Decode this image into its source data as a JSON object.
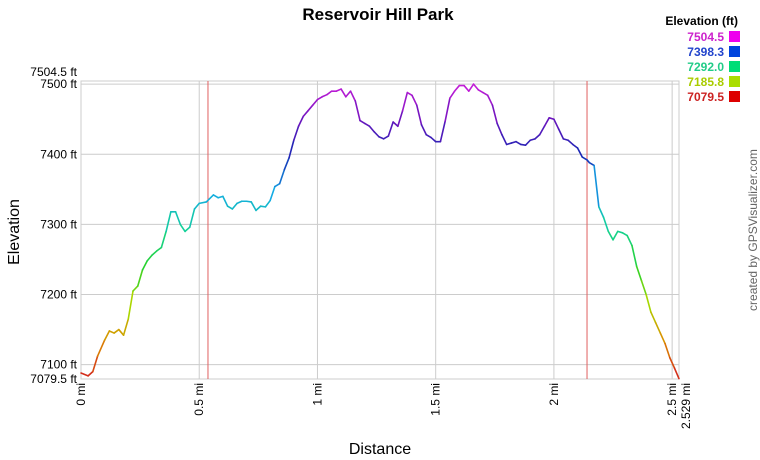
{
  "chart_data": {
    "type": "line",
    "title": "Reservoir Hill Park",
    "xlabel": "Distance",
    "ylabel": "Elevation",
    "xlim": [
      0,
      2.529
    ],
    "ylim": [
      7079.5,
      7504.5
    ],
    "x_ticks": [
      {
        "value": 0,
        "label": "0 mi"
      },
      {
        "value": 0.5,
        "label": "0.5 mi"
      },
      {
        "value": 1,
        "label": "1 mi"
      },
      {
        "value": 1.5,
        "label": "1.5 mi"
      },
      {
        "value": 2,
        "label": "2 mi"
      },
      {
        "value": 2.5,
        "label": "2.5 mi"
      },
      {
        "value": 2.529,
        "label": "2.529 mi"
      }
    ],
    "y_ticks": [
      {
        "value": 7100,
        "label": "7100 ft"
      },
      {
        "value": 7200,
        "label": "7200 ft"
      },
      {
        "value": 7300,
        "label": "7300 ft"
      },
      {
        "value": 7400,
        "label": "7400 ft"
      },
      {
        "value": 7500,
        "label": "7500 ft"
      }
    ],
    "y_bounds": [
      {
        "value": 7079.5,
        "label": "7079.5 ft"
      },
      {
        "value": 7504.5,
        "label": "7504.5 ft"
      }
    ],
    "grid": true,
    "markers_x": [
      0.537,
      2.14
    ],
    "marker_color": "#e06060",
    "legend": {
      "title": "Elevation (ft)",
      "placement": "top-right",
      "items": [
        {
          "label": "7504.5",
          "color": "#cc22cc",
          "swatch": "#ee00ee"
        },
        {
          "label": "7398.3",
          "color": "#2244cc",
          "swatch": "#0044dd"
        },
        {
          "label": "7292.0",
          "color": "#22cc88",
          "swatch": "#00dd77"
        },
        {
          "label": "7185.8",
          "color": "#aacc00",
          "swatch": "#aadd00"
        },
        {
          "label": "7079.5",
          "color": "#cc2222",
          "swatch": "#dd0000"
        }
      ]
    },
    "series": [
      {
        "x": [
          0,
          0.03,
          0.05,
          0.07,
          0.1,
          0.12,
          0.14,
          0.16,
          0.18,
          0.2,
          0.22,
          0.24,
          0.26,
          0.28,
          0.3,
          0.32,
          0.34,
          0.36,
          0.38,
          0.4,
          0.42,
          0.44,
          0.46,
          0.48,
          0.5,
          0.53,
          0.56,
          0.58,
          0.6,
          0.62,
          0.64,
          0.66,
          0.68,
          0.7,
          0.72,
          0.74,
          0.76,
          0.78,
          0.8,
          0.82,
          0.84,
          0.86,
          0.88,
          0.9,
          0.92,
          0.94,
          0.96,
          0.98,
          1.0,
          1.02,
          1.04,
          1.06,
          1.08,
          1.1,
          1.12,
          1.14,
          1.16,
          1.18,
          1.2,
          1.22,
          1.24,
          1.26,
          1.28,
          1.3,
          1.32,
          1.34,
          1.36,
          1.38,
          1.4,
          1.42,
          1.44,
          1.46,
          1.48,
          1.5,
          1.52,
          1.54,
          1.56,
          1.58,
          1.6,
          1.62,
          1.64,
          1.66,
          1.68,
          1.7,
          1.72,
          1.74,
          1.76,
          1.78,
          1.8,
          1.82,
          1.84,
          1.86,
          1.88,
          1.9,
          1.92,
          1.94,
          1.96,
          1.98,
          2.0,
          2.02,
          2.04,
          2.06,
          2.08,
          2.1,
          2.12,
          2.14,
          2.15,
          2.17,
          2.19,
          2.21,
          2.23,
          2.25,
          2.27,
          2.29,
          2.31,
          2.33,
          2.35,
          2.37,
          2.39,
          2.41,
          2.43,
          2.45,
          2.47,
          2.49,
          2.51,
          2.529
        ],
        "y": [
          7088,
          7084,
          7090,
          7112,
          7135,
          7148,
          7145,
          7150,
          7142,
          7165,
          7205,
          7212,
          7235,
          7248,
          7256,
          7262,
          7267,
          7290,
          7318,
          7318,
          7300,
          7290,
          7296,
          7322,
          7330,
          7332,
          7342,
          7338,
          7340,
          7326,
          7322,
          7330,
          7333,
          7333,
          7332,
          7320,
          7326,
          7325,
          7334,
          7354,
          7358,
          7378,
          7395,
          7420,
          7440,
          7454,
          7462,
          7470,
          7478,
          7482,
          7485,
          7490,
          7490,
          7493,
          7482,
          7490,
          7476,
          7448,
          7444,
          7440,
          7432,
          7425,
          7422,
          7426,
          7446,
          7440,
          7462,
          7488,
          7484,
          7470,
          7442,
          7428,
          7424,
          7418,
          7418,
          7447,
          7480,
          7490,
          7498,
          7498,
          7490,
          7500,
          7492,
          7488,
          7484,
          7470,
          7444,
          7428,
          7414,
          7416,
          7418,
          7414,
          7413,
          7420,
          7422,
          7428,
          7440,
          7452,
          7450,
          7436,
          7422,
          7420,
          7414,
          7409,
          7396,
          7392,
          7388,
          7384,
          7325,
          7310,
          7290,
          7278,
          7290,
          7288,
          7284,
          7270,
          7240,
          7220,
          7200,
          7175,
          7160,
          7145,
          7130,
          7110,
          7095,
          7080
        ]
      }
    ]
  },
  "credit": "created by GPSVisualizer.com"
}
